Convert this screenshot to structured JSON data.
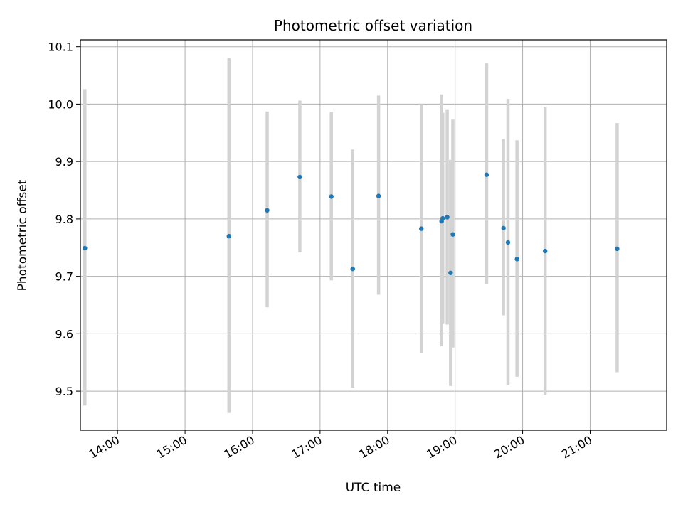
{
  "chart_data": {
    "type": "scatter",
    "title": "Photometric offset variation",
    "xlabel": "UTC time",
    "ylabel": "Photometric offset",
    "x_ticks": [
      "14:00",
      "15:00",
      "16:00",
      "17:00",
      "18:00",
      "19:00",
      "20:00",
      "21:00"
    ],
    "y_ticks": [
      "9.5",
      "9.6",
      "9.7",
      "9.8",
      "9.9",
      "10.0",
      "10.1"
    ],
    "xlim": [
      "13:27",
      "22:08"
    ],
    "ylim": [
      9.432,
      10.112
    ],
    "grid": true,
    "colors": {
      "point": "#1f77b4",
      "errorbar": "#d3d3d3",
      "grid": "#b0b0b0"
    },
    "series": [
      {
        "points": [
          {
            "x": "13:31",
            "y": 9.749,
            "ylow": 9.475,
            "yhigh": 10.026
          },
          {
            "x": "15:39",
            "y": 9.77,
            "ylow": 9.462,
            "yhigh": 10.08
          },
          {
            "x": "16:13",
            "y": 9.815,
            "ylow": 9.646,
            "yhigh": 9.987
          },
          {
            "x": "16:42",
            "y": 9.873,
            "ylow": 9.742,
            "yhigh": 10.006
          },
          {
            "x": "17:10",
            "y": 9.839,
            "ylow": 9.693,
            "yhigh": 9.986
          },
          {
            "x": "17:29",
            "y": 9.713,
            "ylow": 9.506,
            "yhigh": 9.921
          },
          {
            "x": "17:52",
            "y": 9.84,
            "ylow": 9.668,
            "yhigh": 10.015
          },
          {
            "x": "18:30",
            "y": 9.783,
            "ylow": 9.567,
            "yhigh": 10.0
          },
          {
            "x": "18:48",
            "y": 9.796,
            "ylow": 9.578,
            "yhigh": 10.017
          },
          {
            "x": "18:49",
            "y": 9.801,
            "ylow": 9.618,
            "yhigh": 9.985
          },
          {
            "x": "18:53",
            "y": 9.803,
            "ylow": 9.616,
            "yhigh": 9.991
          },
          {
            "x": "18:56",
            "y": 9.706,
            "ylow": 9.509,
            "yhigh": 9.903
          },
          {
            "x": "18:58",
            "y": 9.773,
            "ylow": 9.576,
            "yhigh": 9.973
          },
          {
            "x": "19:28",
            "y": 9.877,
            "ylow": 9.686,
            "yhigh": 10.071
          },
          {
            "x": "19:43",
            "y": 9.784,
            "ylow": 9.632,
            "yhigh": 9.939
          },
          {
            "x": "19:47",
            "y": 9.759,
            "ylow": 9.51,
            "yhigh": 10.009
          },
          {
            "x": "19:55",
            "y": 9.73,
            "ylow": 9.525,
            "yhigh": 9.937
          },
          {
            "x": "20:20",
            "y": 9.744,
            "ylow": 9.494,
            "yhigh": 9.995
          },
          {
            "x": "21:24",
            "y": 9.748,
            "ylow": 9.533,
            "yhigh": 9.967
          }
        ]
      }
    ]
  }
}
